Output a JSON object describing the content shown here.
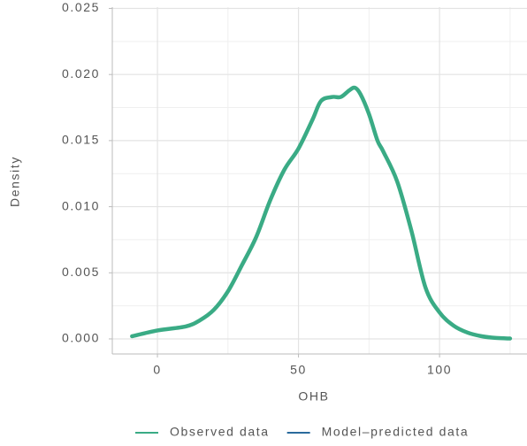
{
  "chart_data": {
    "type": "density",
    "xlabel": "OHB",
    "ylabel": "Density",
    "xlim": [
      -16,
      131
    ],
    "ylim": [
      -0.00114,
      0.0251
    ],
    "xticks": [
      0,
      50,
      100
    ],
    "yticks": [
      {
        "value": 0,
        "label": "0.000"
      },
      0.005,
      {
        "value": 0.01,
        "label": "0.010"
      },
      0.015,
      {
        "value": 0.02,
        "label": "0.020"
      },
      0.025
    ],
    "x_minor_ticks": [
      25,
      75,
      125
    ],
    "y_minor_ticks": [
      0.0025,
      0.0075,
      0.0125,
      0.0175,
      0.0225
    ],
    "grid": true,
    "legend_position": "bottom",
    "series": [
      {
        "name": "Observed data",
        "color": "#3aab85",
        "x": [
          -9,
          0,
          10,
          15,
          20,
          25,
          30,
          35,
          40,
          45,
          50,
          55,
          58,
          62,
          65,
          68,
          70,
          72,
          75,
          78,
          80,
          85,
          90,
          95,
          100,
          105,
          110,
          115,
          120,
          125
        ],
        "values": [
          0.0002,
          0.00064,
          0.00094,
          0.0014,
          0.0022,
          0.0036,
          0.0056,
          0.0077,
          0.0105,
          0.0128,
          0.0144,
          0.0166,
          0.018,
          0.0183,
          0.0183,
          0.0188,
          0.019,
          0.0185,
          0.017,
          0.015,
          0.0142,
          0.0119,
          0.0082,
          0.0039,
          0.002,
          0.001,
          0.00047,
          0.0002,
          7e-05,
          3e-05
        ]
      }
    ],
    "legend": [
      {
        "name": "Observed data",
        "color": "#3aab85"
      },
      {
        "name": "Model–predicted data",
        "color": "#2a6b9c"
      }
    ]
  }
}
